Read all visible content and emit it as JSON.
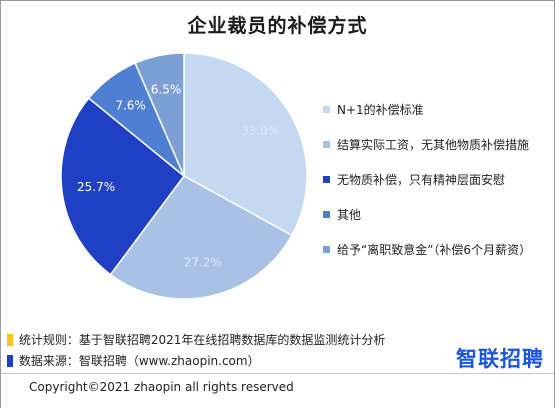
{
  "chart_data": {
    "type": "pie",
    "title": "企业裁员的补偿方式",
    "categories": [
      "N+1的补偿标准",
      "结算实际工资，无其他物质补偿措施",
      "无物质补偿，只有精神层面安慰",
      "其他",
      "给予“离职致意金”（补偿6个月薪资）"
    ],
    "values": [
      33.0,
      27.2,
      25.7,
      7.6,
      6.5
    ],
    "value_labels": [
      "33.0%",
      "27.2%",
      "25.7%",
      "7.6%",
      "6.5%"
    ],
    "colors": [
      "#c5d8f1",
      "#a9c1e5",
      "#1f3fc4",
      "#4f7fd3",
      "#7da0d4"
    ],
    "label_colors": [
      "#dce8f7",
      "#dce8f7",
      "#ffffff",
      "#ffffff",
      "#ffffff"
    ],
    "legend_position": "right",
    "start_angle_deg": 0,
    "direction": "clockwise"
  },
  "notes": {
    "rule": "统计规则：基于智联招聘2021年在线招聘数据库的数据监测统计分析",
    "rule_color": "#f5c518",
    "source": "数据来源：智联招聘（www.zhaopin.com）",
    "source_color": "#1f3fc4"
  },
  "logo": {
    "text": "智联招聘",
    "color": "#1a56db"
  },
  "footer": {
    "copyright": "Copyright©2021 zhaopin all rights reserved"
  }
}
